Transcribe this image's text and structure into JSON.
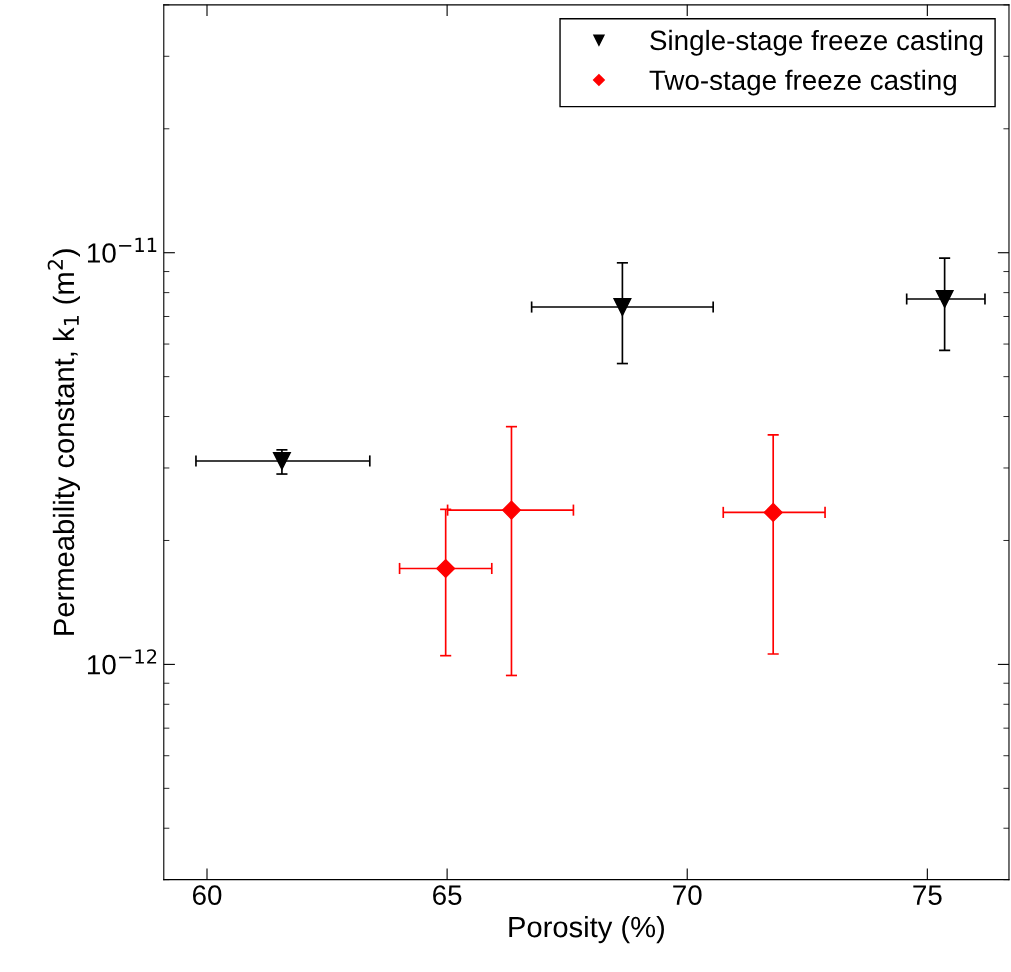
{
  "chart_data": {
    "type": "scatter",
    "xlabel": "Porosity (%)",
    "ylabel": "Permeability constant, k$_{1}$ (m$^{2}$)",
    "log": "y",
    "xlim": [
      59.1,
      76.7
    ],
    "ylim": [
      3e-13,
      4e-11
    ],
    "xticks": [
      60,
      65,
      70,
      75
    ],
    "yticks": [
      {
        "value": 1e-12,
        "label": "10$^{−12}$"
      },
      {
        "value": 1e-11,
        "label": "10$^{−11}$"
      }
    ],
    "grid": false,
    "legend": "top right",
    "series": [
      {
        "name": "Single-stage freeze casting",
        "color": "#000000",
        "marker": "triangle",
        "x": [
          61.56,
          68.65,
          75.36
        ],
        "values": [
          3.12e-12,
          7.38e-12,
          7.72e-12
        ],
        "errors": [
          [
            2.9e-12,
            3.32e-12
          ],
          [
            5.38e-12,
            9.45e-12
          ],
          [
            5.79e-12,
            9.7e-12
          ]
        ],
        "xerrors": [
          [
            59.77,
            63.39
          ],
          [
            66.76,
            70.54
          ],
          [
            74.57,
            76.2
          ]
        ]
      },
      {
        "name": "Two-stage freeze casting",
        "color": "#ff0000",
        "marker": "diamond",
        "x": [
          64.97,
          66.34,
          71.79
        ],
        "values": [
          1.71e-12,
          2.37e-12,
          2.34e-12
        ],
        "errors": [
          [
            1.05e-12,
            2.38e-12
          ],
          [
            9.4e-13,
            3.78e-12
          ],
          [
            1.06e-12,
            3.61e-12
          ]
        ],
        "xerrors": [
          [
            64.01,
            65.93
          ],
          [
            65.01,
            67.63
          ],
          [
            70.75,
            72.87
          ]
        ]
      }
    ]
  }
}
